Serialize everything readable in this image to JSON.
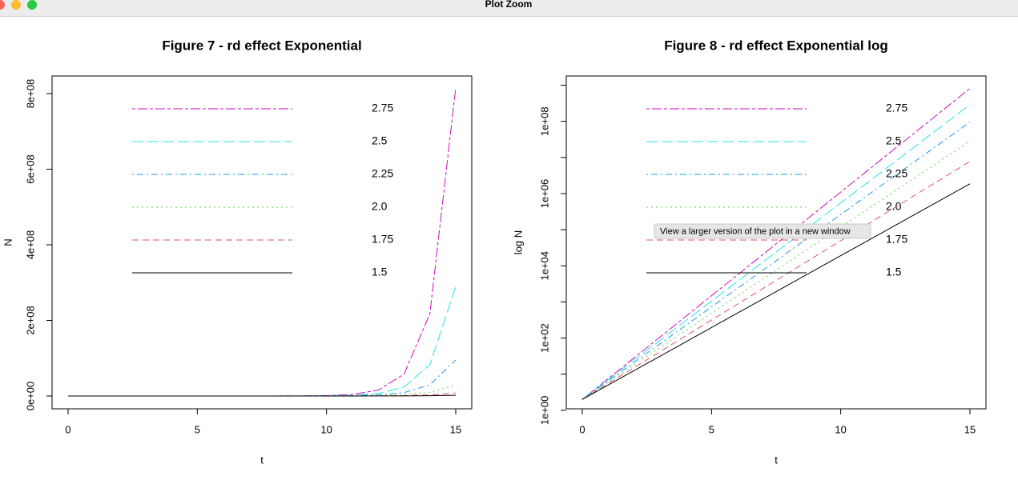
{
  "window": {
    "title": "Plot Zoom"
  },
  "tooltip": "View a larger version of the plot in a new window",
  "chart_data": [
    {
      "type": "line",
      "title": "Figure 7 - rd effect Exponential",
      "xlabel": "t",
      "ylabel": "N",
      "log": false,
      "x": [
        0,
        1,
        2,
        3,
        4,
        5,
        6,
        7,
        8,
        9,
        10,
        11,
        12,
        13,
        14,
        15
      ],
      "xlim": [
        -0.62,
        15.62
      ],
      "xticks": [
        0,
        5,
        10,
        15
      ],
      "ylim": [
        -33900000,
        846600000
      ],
      "yticks": [
        {
          "value": 0,
          "label": "0e+00"
        },
        {
          "value": 200000000,
          "label": "2e+08"
        },
        {
          "value": 400000000,
          "label": "4e+08"
        },
        {
          "value": 600000000,
          "label": "6e+08"
        },
        {
          "value": 800000000,
          "label": "8e+08"
        }
      ],
      "series": [
        {
          "name": "2.75",
          "color": "#CD0BBC",
          "dash": "twodash",
          "values": [
            2,
            7.5,
            28.125,
            105.47,
            395.51,
            1483.2,
            5561.9,
            20857,
            78212,
            293296,
            1099860,
            4124473,
            15466772,
            58000394,
            217501478,
            815630542
          ]
        },
        {
          "name": "2.5",
          "color": "#28E2E5",
          "dash": "longdash",
          "values": [
            2,
            7,
            24.5,
            85.75,
            300.13,
            1050.4,
            3676.5,
            12868,
            45037,
            157630,
            551708,
            1930978,
            6758426,
            23654488,
            82790708,
            289767478
          ]
        },
        {
          "name": "2.25",
          "color": "#2297E6",
          "dash": "dotdash",
          "values": [
            2,
            6.5,
            21.125,
            68.66,
            223.13,
            725.18,
            2356.8,
            7659.8,
            24894,
            80906,
            262944,
            854570,
            2777354,
            9026400,
            29335800,
            95341350
          ]
        },
        {
          "name": "2.0",
          "color": "#61D04F",
          "dash": "dotted",
          "values": [
            2,
            6,
            18,
            54,
            162,
            486,
            1458,
            4374,
            13122,
            39366,
            118098,
            354294,
            1062882,
            3188646,
            9565938,
            28697814
          ]
        },
        {
          "name": "1.75",
          "color": "#DF536B",
          "dash": "dashed",
          "values": [
            2,
            5.5,
            15.125,
            41.59,
            114.38,
            314.55,
            865,
            2378.8,
            6541.8,
            17990,
            49472,
            136048,
            374132,
            1028864,
            2829376,
            7780784
          ]
        },
        {
          "name": "1.5",
          "color": "#000000",
          "dash": "solid",
          "values": [
            2,
            5,
            12.5,
            31.25,
            78.125,
            195.3,
            488.3,
            1220.7,
            3051.8,
            7629.4,
            19073,
            47684,
            119209,
            298023,
            745058,
            1862645
          ]
        }
      ]
    },
    {
      "type": "line",
      "title": "Figure 8 - rd effect Exponential log",
      "xlabel": "t",
      "ylabel": "log N",
      "log": true,
      "x": [
        0,
        1,
        2,
        3,
        4,
        5,
        6,
        7,
        8,
        9,
        10,
        11,
        12,
        13,
        14,
        15
      ],
      "xlim": [
        -0.62,
        15.62
      ],
      "xticks": [
        0,
        5,
        10,
        15
      ],
      "ylim": [
        1.1,
        1800000000
      ],
      "yticks": [
        {
          "value": 1,
          "label": "1e+00"
        },
        {
          "value": 100,
          "label": "1e+02"
        },
        {
          "value": 10000,
          "label": "1e+04"
        },
        {
          "value": 1000000,
          "label": "1e+06"
        },
        {
          "value": 100000000,
          "label": "1e+08"
        }
      ],
      "yminorticks": [
        10,
        1000,
        100000,
        10000000,
        1000000000
      ],
      "series": [
        {
          "name": "2.75",
          "color": "#CD0BBC",
          "dash": "twodash",
          "values": [
            2,
            7.5,
            28.125,
            105.47,
            395.51,
            1483.2,
            5561.9,
            20857,
            78212,
            293296,
            1099860,
            4124473,
            15466772,
            58000394,
            217501478,
            815630542
          ]
        },
        {
          "name": "2.5",
          "color": "#28E2E5",
          "dash": "longdash",
          "values": [
            2,
            7,
            24.5,
            85.75,
            300.13,
            1050.4,
            3676.5,
            12868,
            45037,
            157630,
            551708,
            1930978,
            6758426,
            23654488,
            82790708,
            289767478
          ]
        },
        {
          "name": "2.25",
          "color": "#2297E6",
          "dash": "dotdash",
          "values": [
            2,
            6.5,
            21.125,
            68.66,
            223.13,
            725.18,
            2356.8,
            7659.8,
            24894,
            80906,
            262944,
            854570,
            2777354,
            9026400,
            29335800,
            95341350
          ]
        },
        {
          "name": "2.0",
          "color": "#61D04F",
          "dash": "dotted",
          "values": [
            2,
            6,
            18,
            54,
            162,
            486,
            1458,
            4374,
            13122,
            39366,
            118098,
            354294,
            1062882,
            3188646,
            9565938,
            28697814
          ]
        },
        {
          "name": "1.75",
          "color": "#DF536B",
          "dash": "dashed",
          "values": [
            2,
            5.5,
            15.125,
            41.59,
            114.38,
            314.55,
            865,
            2378.8,
            6541.8,
            17990,
            49472,
            136048,
            374132,
            1028864,
            2829376,
            7780784
          ]
        },
        {
          "name": "1.5",
          "color": "#000000",
          "dash": "solid",
          "values": [
            2,
            5,
            12.5,
            31.25,
            78.125,
            195.3,
            488.3,
            1220.7,
            3051.8,
            7629.4,
            19073,
            47684,
            119209,
            298023,
            745058,
            1862645
          ]
        }
      ]
    }
  ]
}
